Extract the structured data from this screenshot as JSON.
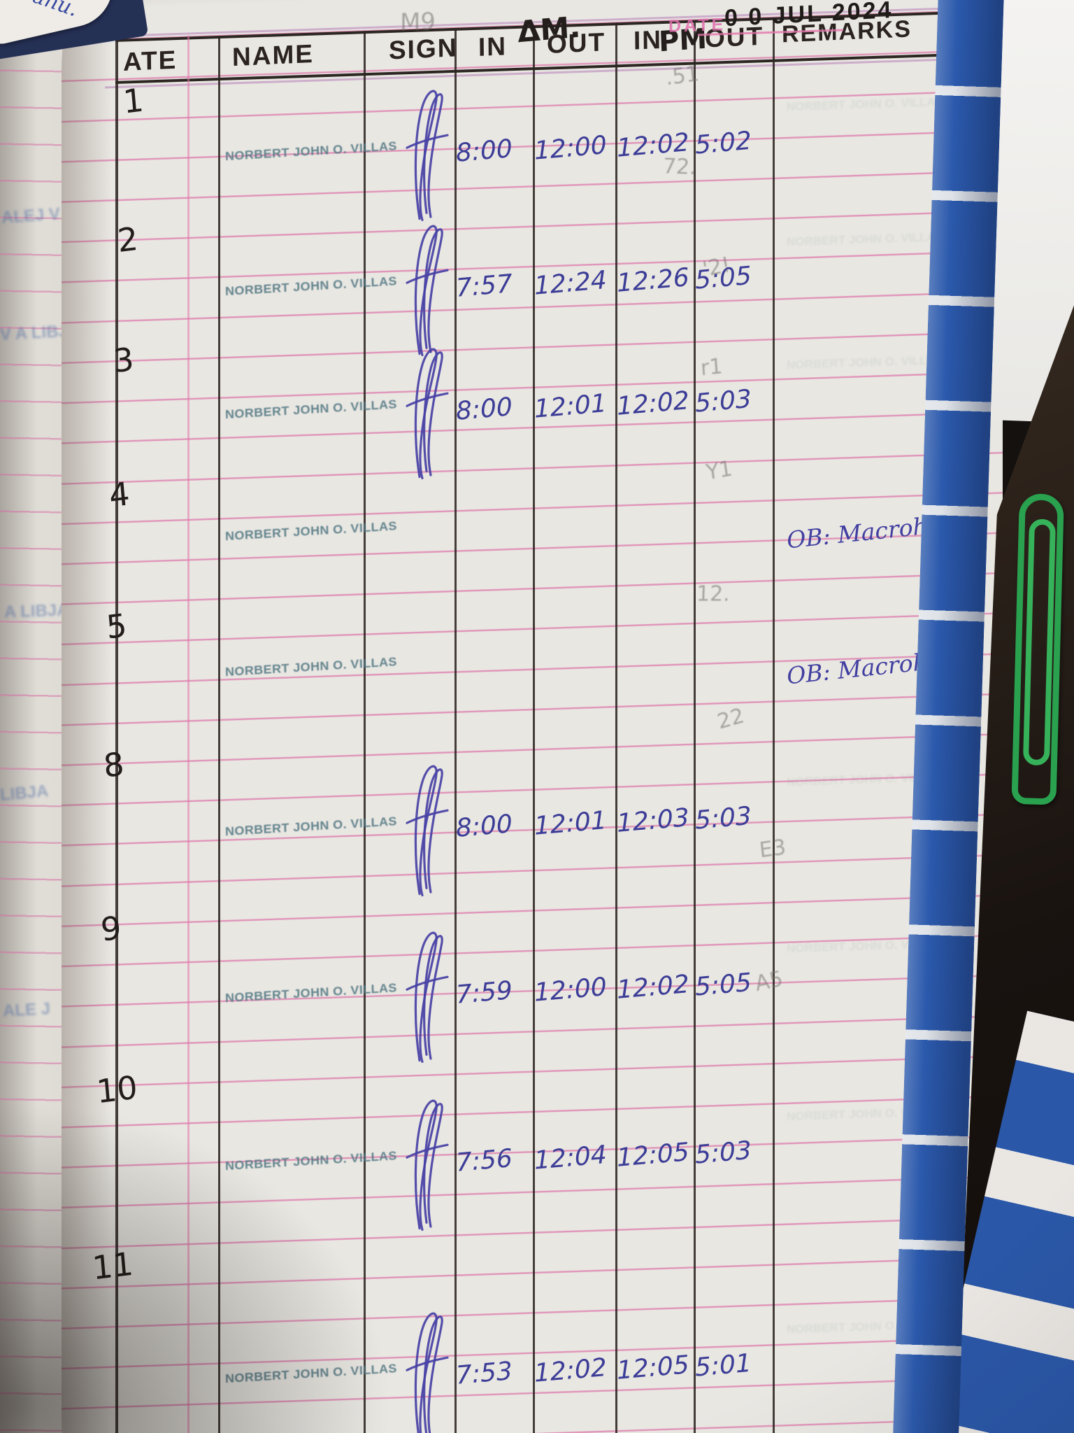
{
  "photo": {
    "am_label": "ΔM.",
    "pm_label": "PM",
    "date_stamp_label": "DATE",
    "date_stamp_value": "0 0 JUL 2024",
    "ghost_note": "M9",
    "corner_scribble": "anu.",
    "ink_color": "#3c3d97",
    "ruling_color": "#db66a1",
    "binding_color": "#2b59ac",
    "paperclip_color": "#2aa14f",
    "left_edge_fragments": [
      "ALEJ V",
      "V A LIBJA",
      "A LIBJA",
      "LIBJA",
      "ALE J"
    ],
    "ghost_marks": [
      ".51",
      "72.",
      "'2!",
      "r1",
      "Y1",
      "12.",
      "22",
      "E3",
      "A5"
    ]
  },
  "table": {
    "columns": [
      "ATE",
      "NAME",
      "SIGN",
      "IN",
      "OUT",
      "IN",
      "OUT",
      "REMARKS"
    ]
  },
  "rows": [
    {
      "num": "1",
      "name": "NORBERT JOHN O. VILLAS",
      "signed": true,
      "am_in": "8:00",
      "am_out": "12:00",
      "pm_in": "12:02",
      "pm_out": "5:02",
      "remark": ""
    },
    {
      "num": "2",
      "name": "NORBERT JOHN O. VILLAS",
      "signed": true,
      "am_in": "7:57",
      "am_out": "12:24",
      "pm_in": "12:26",
      "pm_out": "5:05",
      "remark": ""
    },
    {
      "num": "3",
      "name": "NORBERT JOHN O. VILLAS",
      "signed": true,
      "am_in": "8:00",
      "am_out": "12:01",
      "pm_in": "12:02",
      "pm_out": "5:03",
      "remark": ""
    },
    {
      "num": "4",
      "name": "NORBERT JOHN O. VILLAS",
      "signed": false,
      "am_in": "",
      "am_out": "",
      "pm_in": "",
      "pm_out": "",
      "remark": "OB: Macrohon"
    },
    {
      "num": "5",
      "name": "NORBERT JOHN O. VILLAS",
      "signed": false,
      "am_in": "",
      "am_out": "",
      "pm_in": "",
      "pm_out": "",
      "remark": "OB: Macrohon"
    },
    {
      "num": "8",
      "name": "NORBERT JOHN O. VILLAS",
      "signed": true,
      "am_in": "8:00",
      "am_out": "12:01",
      "pm_in": "12:03",
      "pm_out": "5:03",
      "remark": ""
    },
    {
      "num": "9",
      "name": "NORBERT JOHN O. VILLAS",
      "signed": true,
      "am_in": "7:59",
      "am_out": "12:00",
      "pm_in": "12:02",
      "pm_out": "5:05",
      "remark": ""
    },
    {
      "num": "10",
      "name": "NORBERT JOHN O. VILLAS",
      "signed": true,
      "am_in": "7:56",
      "am_out": "12:04",
      "pm_in": "12:05",
      "pm_out": "5:03",
      "remark": ""
    },
    {
      "num": "11",
      "name": "NORBERT JOHN O. VILLAS",
      "signed": true,
      "am_in": "7:53",
      "am_out": "12:02",
      "pm_in": "12:05",
      "pm_out": "5:01",
      "remark": ""
    }
  ]
}
